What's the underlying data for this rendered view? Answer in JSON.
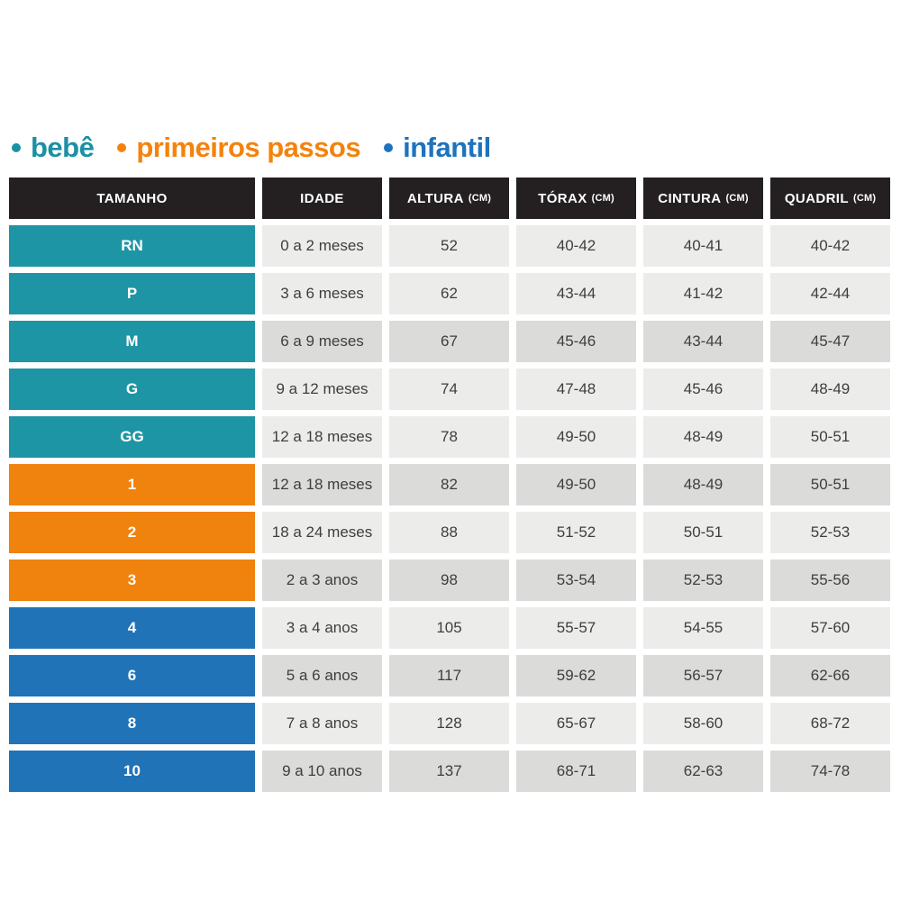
{
  "chart_data": {
    "type": "table",
    "legend": [
      {
        "label": "bebê",
        "color": "#1C90A4"
      },
      {
        "label": "primeiros passos",
        "color": "#F5820C"
      },
      {
        "label": "infantil",
        "color": "#1E73BE"
      }
    ],
    "columns": [
      {
        "label": "TAMANHO",
        "unit": ""
      },
      {
        "label": "IDADE",
        "unit": ""
      },
      {
        "label": "ALTURA",
        "unit": "(CM)"
      },
      {
        "label": "TÓRAX",
        "unit": "(CM)"
      },
      {
        "label": "CINTURA",
        "unit": "(CM)"
      },
      {
        "label": "QUADRIL",
        "unit": "(CM)"
      }
    ],
    "rows": [
      {
        "tamanho": "RN",
        "group": "bebe",
        "shade": "light",
        "idade": "0 a 2 meses",
        "altura": "52",
        "torax": "40-42",
        "cintura": "40-41",
        "quadril": "40-42"
      },
      {
        "tamanho": "P",
        "group": "bebe",
        "shade": "light",
        "idade": "3 a 6 meses",
        "altura": "62",
        "torax": "43-44",
        "cintura": "41-42",
        "quadril": "42-44"
      },
      {
        "tamanho": "M",
        "group": "bebe",
        "shade": "dark",
        "idade": "6 a 9 meses",
        "altura": "67",
        "torax": "45-46",
        "cintura": "43-44",
        "quadril": "45-47"
      },
      {
        "tamanho": "G",
        "group": "bebe",
        "shade": "light",
        "idade": "9 a 12 meses",
        "altura": "74",
        "torax": "47-48",
        "cintura": "45-46",
        "quadril": "48-49"
      },
      {
        "tamanho": "GG",
        "group": "bebe",
        "shade": "light",
        "idade": "12 a 18 meses",
        "altura": "78",
        "torax": "49-50",
        "cintura": "48-49",
        "quadril": "50-51"
      },
      {
        "tamanho": "1",
        "group": "primeiros_passos",
        "shade": "dark",
        "idade": "12 a 18 meses",
        "altura": "82",
        "torax": "49-50",
        "cintura": "48-49",
        "quadril": "50-51"
      },
      {
        "tamanho": "2",
        "group": "primeiros_passos",
        "shade": "light",
        "idade": "18 a 24 meses",
        "altura": "88",
        "torax": "51-52",
        "cintura": "50-51",
        "quadril": "52-53"
      },
      {
        "tamanho": "3",
        "group": "primeiros_passos",
        "shade": "dark",
        "idade": "2 a 3 anos",
        "altura": "98",
        "torax": "53-54",
        "cintura": "52-53",
        "quadril": "55-56"
      },
      {
        "tamanho": "4",
        "group": "infantil",
        "shade": "light",
        "idade": "3 a 4 anos",
        "altura": "105",
        "torax": "55-57",
        "cintura": "54-55",
        "quadril": "57-60"
      },
      {
        "tamanho": "6",
        "group": "infantil",
        "shade": "dark",
        "idade": "5 a 6 anos",
        "altura": "117",
        "torax": "59-62",
        "cintura": "56-57",
        "quadril": "62-66"
      },
      {
        "tamanho": "8",
        "group": "infantil",
        "shade": "light",
        "idade": "7 a 8 anos",
        "altura": "128",
        "torax": "65-67",
        "cintura": "58-60",
        "quadril": "68-72"
      },
      {
        "tamanho": "10",
        "group": "infantil",
        "shade": "dark",
        "idade": "9 a 10 anos",
        "altura": "137",
        "torax": "68-71",
        "cintura": "62-63",
        "quadril": "74-78"
      }
    ],
    "group_colors": {
      "bebe": "#1E95A5",
      "primeiros_passos": "#F0820E",
      "infantil": "#2173B7"
    },
    "style_colors": {
      "page_bg": "#FFFFFF",
      "header_bg": "#242021",
      "header_text": "#FFFFFF",
      "row_light": "#ECECEA",
      "row_dark": "#DBDBD9",
      "cell_text": "#3E3E3E"
    },
    "layout_hints": {
      "legend_position": "top-left"
    }
  }
}
